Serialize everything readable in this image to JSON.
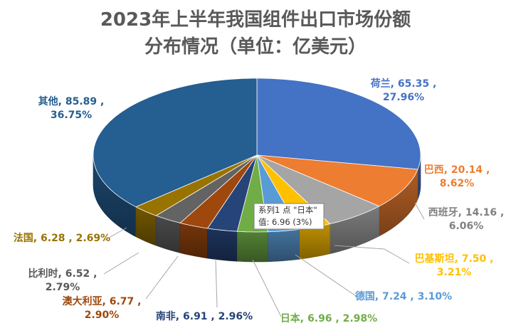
{
  "chart_data": {
    "type": "pie",
    "title_line1": "2023年上半年我国组件出口市场份额",
    "title_line2": "分布情况（单位：亿美元）",
    "slices": [
      {
        "name": "荷兰",
        "value": 65.35,
        "percent": "27.96%",
        "color": "#4472C4",
        "label_color": "#4472C4",
        "label_line1": "荷兰, 65.35 ,",
        "label_line2": "27.96%"
      },
      {
        "name": "巴西",
        "value": 20.14,
        "percent": "8.62%",
        "color": "#ED7D31",
        "label_color": "#ED7D31",
        "label_line1": "巴西, 20.14 ,",
        "label_line2": "8.62%"
      },
      {
        "name": "西班牙",
        "value": 14.16,
        "percent": "6.06%",
        "color": "#A5A5A5",
        "label_color": "#808080",
        "label_line1": "西班牙, 14.16 ,",
        "label_line2": "6.06%"
      },
      {
        "name": "巴基斯坦",
        "value": 7.5,
        "percent": "3.21%",
        "color": "#FFC000",
        "label_color": "#FFC000",
        "label_line1": "巴基斯坦, 7.50 ,",
        "label_line2": "3.21%"
      },
      {
        "name": "德国",
        "value": 7.24,
        "percent": "3.10%",
        "color": "#5B9BD5",
        "label_color": "#5B9BD5",
        "label_line1": "德国, 7.24 , 3.10%",
        "label_line2": ""
      },
      {
        "name": "日本",
        "value": 6.96,
        "percent": "2.98%",
        "color": "#70AD47",
        "label_color": "#70AD47",
        "label_line1": "日本, 6.96 , 2.98%",
        "label_line2": ""
      },
      {
        "name": "南非",
        "value": 6.91,
        "percent": "2.96%",
        "color": "#264478",
        "label_color": "#264478",
        "label_line1": "南非, 6.91 , 2.96%",
        "label_line2": ""
      },
      {
        "name": "澳大利亚",
        "value": 6.77,
        "percent": "2.90%",
        "color": "#9E480E",
        "label_color": "#9E480E",
        "label_line1": "澳大利亚, 6.77 ,",
        "label_line2": "2.90%"
      },
      {
        "name": "比利时",
        "value": 6.52,
        "percent": "2.79%",
        "color": "#636363",
        "label_color": "#595959",
        "label_line1": "比利时, 6.52 ,",
        "label_line2": "2.79%"
      },
      {
        "name": "法国",
        "value": 6.28,
        "percent": "2.69%",
        "color": "#997300",
        "label_color": "#997300",
        "label_line1": "法国, 6.28 , 2.69%",
        "label_line2": ""
      },
      {
        "name": "其他",
        "value": 85.89,
        "percent": "36.75%",
        "color": "#255E91",
        "label_color": "#255E91",
        "label_line1": "其他, 85.89 ,",
        "label_line2": "36.75%"
      }
    ],
    "style": "3D pie",
    "legend": "none",
    "tooltip": {
      "line1": "系列1 点 \"日本\"",
      "line2": "值: 6.96  (3%)"
    }
  }
}
